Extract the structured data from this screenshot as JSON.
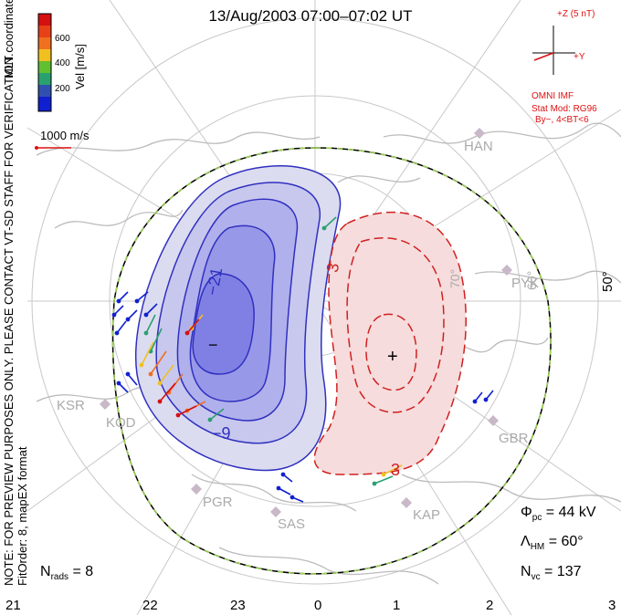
{
  "title": "13/Aug/2003 07:00–07:02 UT",
  "colorbar": {
    "unit": "Vel [m/s]",
    "ticks": [
      "600",
      "400",
      "200"
    ],
    "colors": [
      "#d41010",
      "#f07020",
      "#f0c020",
      "#60c030",
      "#2aa070",
      "#3050b0",
      "#1020d0"
    ]
  },
  "vertical_notes": {
    "coords": "MLT coordinates",
    "notice": "NOTE: FOR PREVIEW PURPOSES ONLY. PLEASE CONTACT VT-SD STAFF FOR VERIFICATION.",
    "fit": "FitOrder: 8, mapEX format"
  },
  "reference_vector": "1000 m/s",
  "imf": {
    "scale": "+Z (5 nT)",
    "axis_y": "+Y",
    "source": "OMNI IMF",
    "model": "Stat Mod: RG96",
    "condition": "By−, 4<BT<6"
  },
  "stations": [
    "HAN",
    "PYK",
    "KSR",
    "KOD",
    "GBR",
    "PGR",
    "SAS",
    "KAP"
  ],
  "latitude_labels": [
    "50°",
    "60°",
    "70°"
  ],
  "contours": {
    "neg_label_1": "−21",
    "neg_label_2": "−9",
    "neg_center": "−",
    "pos_label_1": "3",
    "pos_label_2": "3",
    "pos_center": "+"
  },
  "stats": {
    "phi_symbol": "Φ",
    "phi_sub": "pc",
    "phi_value": "= 44 kV",
    "lambda_symbol": "Λ",
    "lambda_sub": "HM",
    "lambda_value": "= 60°",
    "nvc_symbol": "N",
    "nvc_sub": "vc",
    "nvc_value": "= 137",
    "nrads_symbol": "N",
    "nrads_sub": "rads",
    "nrads_value": "= 8"
  },
  "mlt_hours": [
    "21",
    "22",
    "23",
    "0",
    "1",
    "2",
    "3"
  ],
  "colors": {
    "negative": "#3030c0",
    "positive": "#d02020",
    "boundary": "#9ad050"
  }
}
